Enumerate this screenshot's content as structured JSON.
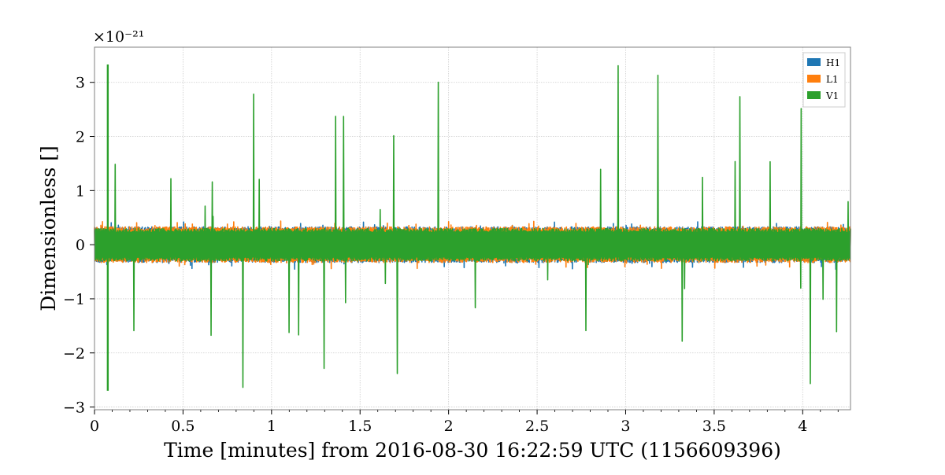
{
  "chart_data": {
    "type": "line",
    "title": "",
    "xlabel": "Time [minutes] from 2016-08-30 16:22:59 UTC (1156609396)",
    "ylabel": "Dimensionless []",
    "y_multiplier_label": "×10⁻²¹",
    "xlim": [
      0,
      4.27
    ],
    "ylim": [
      -3.05,
      3.65
    ],
    "x_ticks": [
      0,
      0.5,
      1,
      1.5,
      2,
      2.5,
      3,
      3.5,
      4
    ],
    "x_tick_labels": [
      "0",
      "0.5",
      "1",
      "1.5",
      "2",
      "2.5",
      "3",
      "3.5",
      "4"
    ],
    "y_ticks": [
      -3,
      -2,
      -1,
      0,
      1,
      2,
      3
    ],
    "y_tick_labels": [
      "−3",
      "−2",
      "−1",
      "0",
      "1",
      "2",
      "3"
    ],
    "grid": true,
    "legend_position": "top-right",
    "series": [
      {
        "name": "H1",
        "color": "#1f77b4",
        "noise_amplitude": 0.33,
        "peak_max": 0.45,
        "peak_min": -0.46
      },
      {
        "name": "L1",
        "color": "#ff7f0e",
        "noise_amplitude": 0.33,
        "peak_max": 0.44,
        "peak_min": -0.46
      },
      {
        "name": "V1",
        "color": "#2ca02c",
        "noise_amplitude": 0.3,
        "peak_max": 3.33,
        "peak_min": -2.7,
        "spike_time": 0.075
      }
    ]
  }
}
